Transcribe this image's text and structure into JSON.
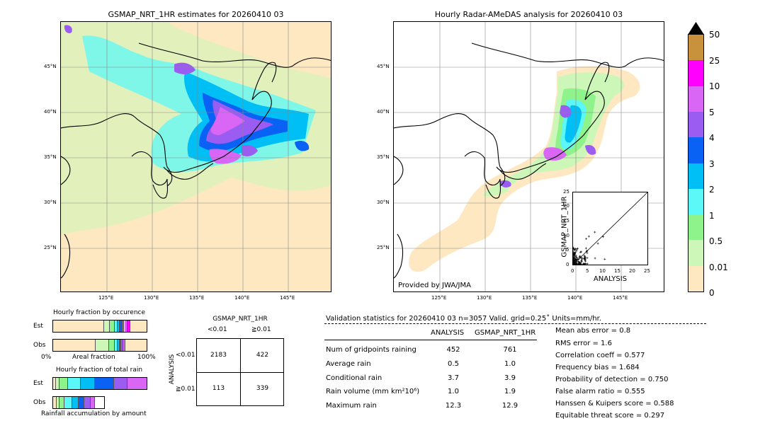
{
  "left_map": {
    "title": "GSMAP_NRT_1HR estimates for 20260410 03",
    "lat_labels": [
      "45°N",
      "40°N",
      "35°N",
      "30°N",
      "25°N"
    ],
    "lon_labels": [
      "125°E",
      "130°E",
      "135°E",
      "140°E",
      "145°E"
    ]
  },
  "right_map": {
    "title": "Hourly Radar-AMeDAS analysis for 20260410 03",
    "lat_labels": [
      "45°N",
      "40°N",
      "35°N",
      "30°N",
      "25°N"
    ],
    "lon_labels": [
      "125°E",
      "130°E",
      "135°E",
      "140°E",
      "145°E"
    ],
    "credit": "Provided by JWA/JMA"
  },
  "scatter": {
    "ylabel": "GSMAP_NRT_1HR",
    "xlabel": "ANALYSIS",
    "ticks": [
      "0",
      "5",
      "10",
      "15",
      "20",
      "25"
    ]
  },
  "colorbar": {
    "labels": [
      "50",
      "25",
      "10",
      "5",
      "4",
      "3",
      "2",
      "1",
      "0.5",
      "0.01",
      "0"
    ],
    "colors": [
      "#c8913b",
      "#ff00ff",
      "#d966f5",
      "#9b5cf2",
      "#0a62f5",
      "#00bff5",
      "#5cf7f7",
      "#8ef38a",
      "#ccf7b8",
      "#fde8c1"
    ]
  },
  "fraction_occurrence": {
    "title": "Hourly fraction by occurence",
    "row_labels": [
      "Est",
      "Obs"
    ],
    "axis_left": "0%",
    "axis_mid": "Areal fraction",
    "axis_right": "100%"
  },
  "fraction_total": {
    "title": "Hourly fraction of total rain",
    "row_labels": [
      "Est",
      "Obs"
    ],
    "footer": "Rainfall accumulation by amount"
  },
  "contingency": {
    "title": "GSMAP_NRT_1HR",
    "col_labels": [
      "<0.01",
      "≧0.01"
    ],
    "row_axis": "ANALYSIS",
    "row_labels": [
      "<0.01",
      "≧0.01"
    ],
    "cells": [
      "2183",
      "422",
      "113",
      "339"
    ]
  },
  "validation": {
    "header": "Validation statistics for 20260410 03  n=3057 Valid. grid=0.25˚ Units=mm/hr.",
    "col_analysis": "ANALYSIS",
    "col_gsmap": "GSMAP_NRT_1HR",
    "rows": [
      {
        "label": "Num of gridpoints raining",
        "analysis": "452",
        "gsmap": "761"
      },
      {
        "label": "Average rain",
        "analysis": "0.5",
        "gsmap": "1.0"
      },
      {
        "label": "Conditional rain",
        "analysis": "3.7",
        "gsmap": "3.9"
      },
      {
        "label": "Rain volume (mm km²10⁶)",
        "analysis": "1.0",
        "gsmap": "1.9"
      },
      {
        "label": "Maximum rain",
        "analysis": "12.3",
        "gsmap": "12.9"
      }
    ],
    "scores": [
      "Mean abs error =    0.8",
      "RMS error =    1.6",
      "Correlation coeff =  0.577",
      "Frequency bias =  1.684",
      "Probability of detection =  0.750",
      "False alarm ratio =  0.555",
      "Hanssen & Kuipers score =  0.588",
      "Equitable threat score =  0.297"
    ]
  },
  "chart_data": {
    "type": "scatter",
    "xlabel": "ANALYSIS",
    "ylabel": "GSMAP_NRT_1HR",
    "xlim": [
      0,
      25
    ],
    "ylim": [
      0,
      25
    ],
    "fraction_occurrence": {
      "est": [
        0.54,
        0.06,
        0.05,
        0.03,
        0.02,
        0.03,
        0.02,
        0.03,
        0.03
      ],
      "obs": [
        0.45,
        0.14,
        0.06,
        0.03,
        0.02,
        0.02,
        0.02,
        0.02
      ]
    },
    "fraction_total_rain": {
      "est": [
        0.03,
        0.04,
        0.09,
        0.13,
        0.15,
        0.2,
        0.14,
        0.33,
        0.05
      ],
      "obs": [
        0.07,
        0.05,
        0.1,
        0.14,
        0.12,
        0.11,
        0.12,
        0.09
      ]
    }
  }
}
